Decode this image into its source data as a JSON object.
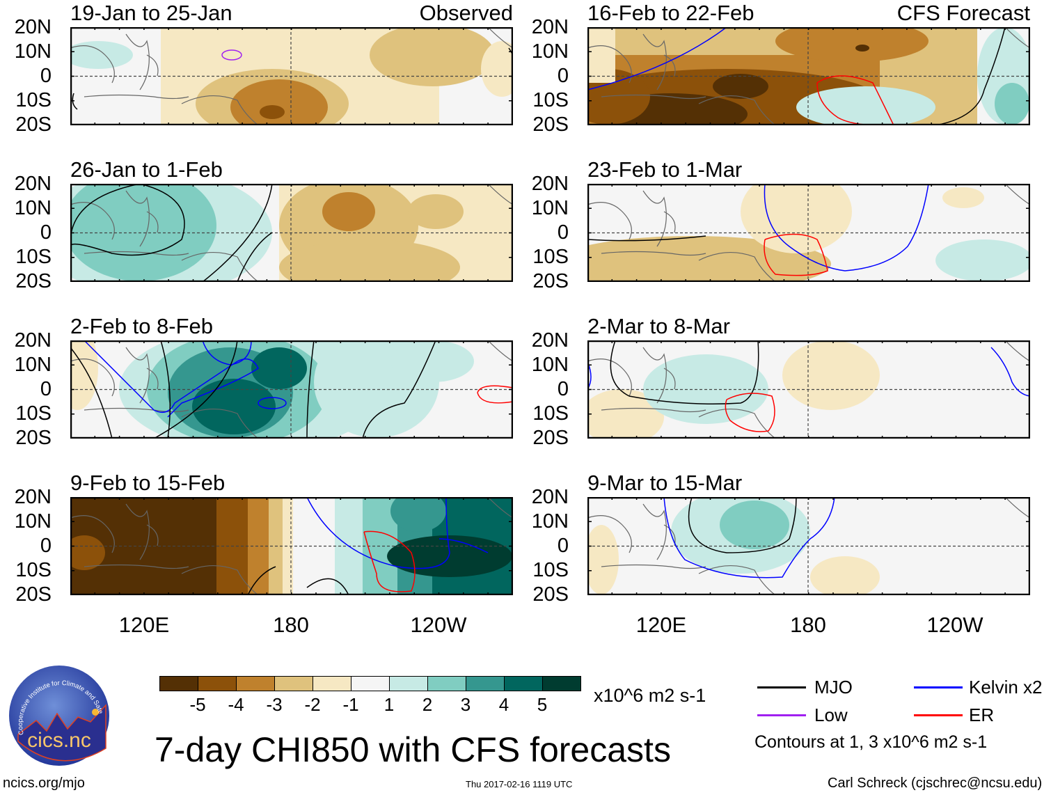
{
  "panels_left": [
    {
      "title": "19-Jan to 25-Jan",
      "tag": "Observed"
    },
    {
      "title": "26-Jan to 1-Feb",
      "tag": ""
    },
    {
      "title": "2-Feb to 8-Feb",
      "tag": ""
    },
    {
      "title": "9-Feb to 15-Feb",
      "tag": ""
    }
  ],
  "panels_right": [
    {
      "title": "16-Feb to 22-Feb",
      "tag": "CFS Forecast"
    },
    {
      "title": "23-Feb to 1-Mar",
      "tag": ""
    },
    {
      "title": "2-Mar to 8-Mar",
      "tag": ""
    },
    {
      "title": "9-Mar to 15-Mar",
      "tag": ""
    }
  ],
  "lat_labels": [
    "20N",
    "10N",
    "0",
    "10S",
    "20S"
  ],
  "lon_labels": [
    "120E",
    "180",
    "120W"
  ],
  "colorbar": {
    "colors": [
      "#543005",
      "#8c510a",
      "#bf812d",
      "#dfc27d",
      "#f6e8c3",
      "#f5f5f5",
      "#c7eae5",
      "#80cdc1",
      "#35978f",
      "#01665e",
      "#003c30"
    ],
    "labels": [
      "-5",
      "-4",
      "-3",
      "-2",
      "-1",
      "1",
      "2",
      "3",
      "4",
      "5"
    ],
    "units": "x10^6 m2 s-1"
  },
  "title": "7-day CHI850 with CFS forecasts",
  "legend": {
    "items": [
      {
        "label": "MJO",
        "color": "#000000"
      },
      {
        "label": "Kelvin x2",
        "color": "#0000ff"
      },
      {
        "label": "Low",
        "color": "#a020f0"
      },
      {
        "label": "ER",
        "color": "#ff0000"
      }
    ],
    "note": "Contours at 1, 3 x10^6 m2 s-1"
  },
  "logo": {
    "text": "cics.nc",
    "arc": "Cooperative Institute for Climate and Satellites"
  },
  "footer": {
    "url": "ncics.org/mjo",
    "timestamp": "Thu 2017-02-16 1119 UTC",
    "credit": "Carl Schreck (cjschrec@ncsu.edu)"
  }
}
